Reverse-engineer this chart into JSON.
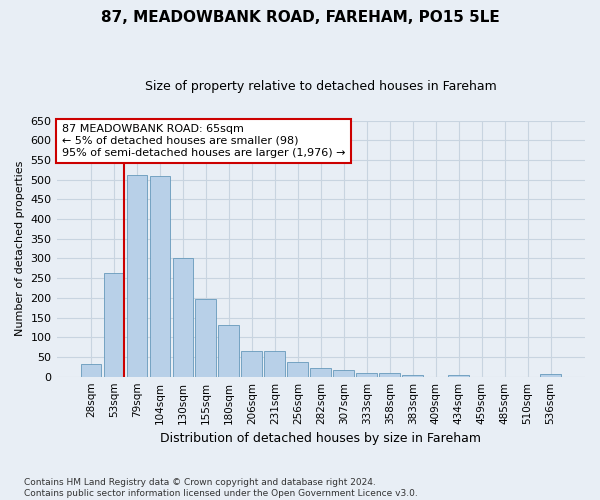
{
  "title": "87, MEADOWBANK ROAD, FAREHAM, PO15 5LE",
  "subtitle": "Size of property relative to detached houses in Fareham",
  "xlabel": "Distribution of detached houses by size in Fareham",
  "ylabel": "Number of detached properties",
  "bar_labels": [
    "28sqm",
    "53sqm",
    "79sqm",
    "104sqm",
    "130sqm",
    "155sqm",
    "180sqm",
    "206sqm",
    "231sqm",
    "256sqm",
    "282sqm",
    "307sqm",
    "333sqm",
    "358sqm",
    "383sqm",
    "409sqm",
    "434sqm",
    "459sqm",
    "485sqm",
    "510sqm",
    "536sqm"
  ],
  "bar_values": [
    32,
    263,
    512,
    510,
    302,
    196,
    131,
    65,
    65,
    37,
    22,
    16,
    10,
    9,
    5,
    0,
    5,
    0,
    0,
    0,
    6
  ],
  "bar_color": "#b8d0e8",
  "bar_edge_color": "#6699bb",
  "grid_color": "#c8d4e0",
  "background_color": "#e8eef5",
  "vline_color": "#cc0000",
  "annotation_text": "87 MEADOWBANK ROAD: 65sqm\n← 5% of detached houses are smaller (98)\n95% of semi-detached houses are larger (1,976) →",
  "annotation_box_color": "#ffffff",
  "annotation_box_edge_color": "#cc0000",
  "footnote": "Contains HM Land Registry data © Crown copyright and database right 2024.\nContains public sector information licensed under the Open Government Licence v3.0.",
  "ylim": [
    0,
    650
  ],
  "yticks": [
    0,
    50,
    100,
    150,
    200,
    250,
    300,
    350,
    400,
    450,
    500,
    550,
    600,
    650
  ],
  "figsize": [
    6.0,
    5.0
  ],
  "dpi": 100
}
